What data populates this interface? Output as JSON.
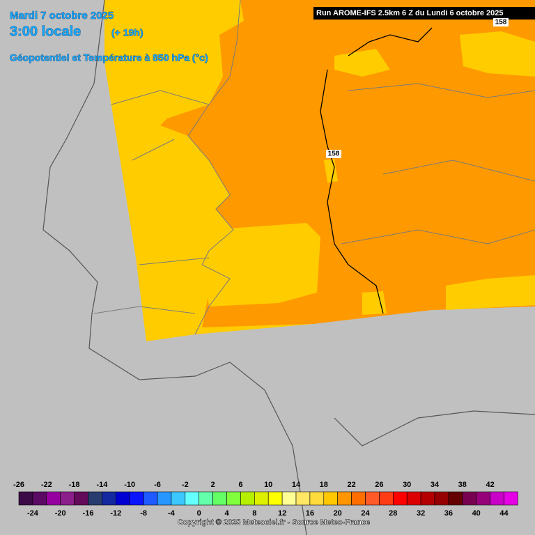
{
  "header": {
    "date": "Mardi 7 octobre 2025",
    "time": "3:00 locale",
    "lead": "(+ 19h)",
    "field": "Géopotentiel et Température à 850 hPa (°c)",
    "run": "Run AROME-IFS 2.5km 6 Z du Lundi 6 octobre 2025"
  },
  "contour_labels": [
    "158",
    "158"
  ],
  "legend": {
    "values": [
      -26,
      -24,
      -22,
      -20,
      -18,
      -16,
      -14,
      -12,
      -10,
      -8,
      -6,
      -4,
      -2,
      0,
      2,
      4,
      6,
      8,
      10,
      12,
      14,
      16,
      18,
      20,
      22,
      24,
      26,
      28,
      30,
      32,
      34,
      36,
      38,
      40,
      42,
      44
    ],
    "colors": [
      "#3c0a46",
      "#5a0a64",
      "#9600a0",
      "#8c1e8c",
      "#640a5a",
      "#283c6e",
      "#1428a0",
      "#0000d2",
      "#0a14ff",
      "#1e5aff",
      "#2896ff",
      "#3cc8ff",
      "#64ffff",
      "#64ffaa",
      "#64ff64",
      "#82ff3c",
      "#b4f000",
      "#dcf000",
      "#ffff00",
      "#ffff96",
      "#ffe664",
      "#ffdc3c",
      "#ffc800",
      "#ff9600",
      "#ff6e00",
      "#ff5a28",
      "#ff3c14",
      "#ff0000",
      "#dc0000",
      "#b40000",
      "#960000",
      "#640000",
      "#780050",
      "#960078",
      "#c800c8",
      "#e600e6"
    ]
  },
  "footer": "Copyright © 2025 Meteociel.fr - Source Meteo-France"
}
